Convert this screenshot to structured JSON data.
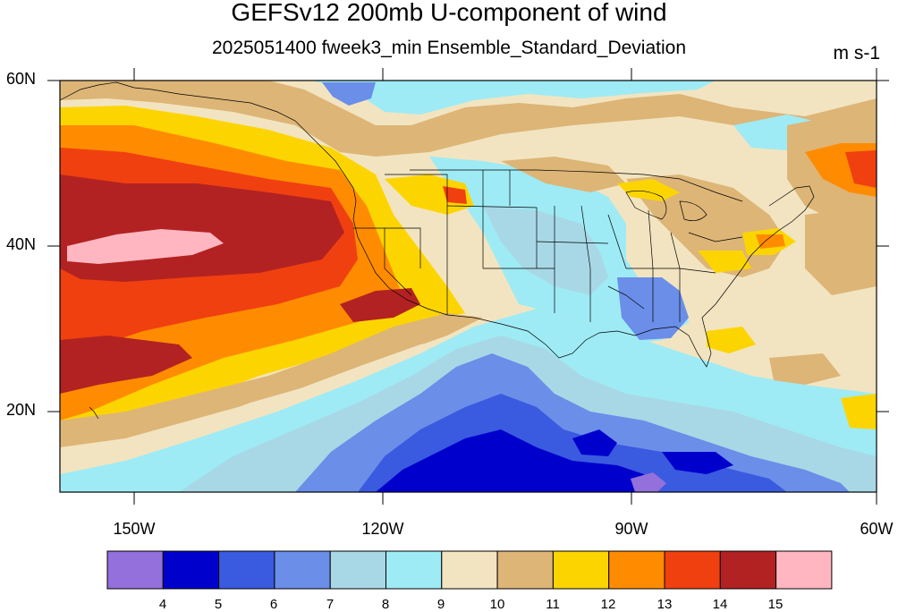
{
  "title": "GEFSv12 200mb U-component of wind",
  "subtitle": "2025051400 fweek3_min Ensemble_Standard_Deviation",
  "units": "m s-1",
  "map": {
    "lat_labels": [
      "60N",
      "40N",
      "20N"
    ],
    "lon_labels": [
      "150W",
      "120W",
      "90W",
      "60W"
    ],
    "lat_range": [
      10,
      60
    ],
    "lon_range": [
      -160,
      -60
    ]
  },
  "colorbar": {
    "levels": [
      "4",
      "5",
      "6",
      "7",
      "8",
      "9",
      "10",
      "11",
      "12",
      "13",
      "14",
      "15"
    ],
    "colors": [
      "#9370db",
      "#0000cd",
      "#3a5ae0",
      "#6b8ee8",
      "#a8d8e6",
      "#9eebf5",
      "#f2e4c0",
      "#ddb577",
      "#fcd500",
      "#ff8c00",
      "#f04010",
      "#b22222",
      "#ffb6c1"
    ]
  }
}
